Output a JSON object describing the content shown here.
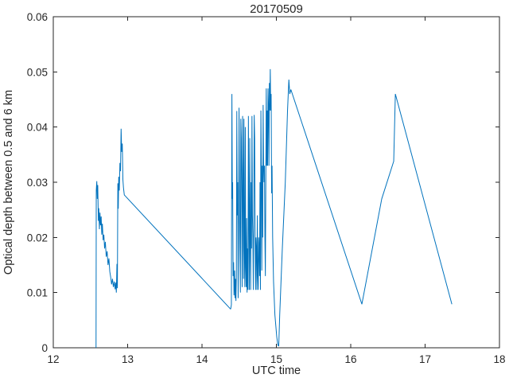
{
  "chart_data": {
    "type": "line",
    "title": "20170509",
    "xlabel": "UTC time",
    "ylabel": "Optical depth between 0.5 and 6 km",
    "xlim": [
      12,
      18
    ],
    "ylim": [
      0,
      0.06
    ],
    "xticks": [
      12,
      13,
      14,
      15,
      16,
      17,
      18
    ],
    "xtick_labels": [
      "12",
      "13",
      "14",
      "15",
      "16",
      "17",
      "18"
    ],
    "yticks": [
      0,
      0.01,
      0.02,
      0.03,
      0.04,
      0.05,
      0.06
    ],
    "ytick_labels": [
      "0",
      "0.01",
      "0.02",
      "0.03",
      "0.04",
      "0.05",
      "0.06"
    ],
    "grid": false,
    "legend_position": "none",
    "line_color": "#0072bd",
    "axis_color": "#262626",
    "background_color": "#ffffff",
    "series": [
      {
        "name": "optical-depth-trace",
        "x": [
          12.575,
          12.578,
          12.585,
          12.592,
          12.598,
          12.606,
          12.612,
          12.62,
          12.628,
          12.636,
          12.644,
          12.652,
          12.66,
          12.67,
          12.68,
          12.69,
          12.7,
          12.712,
          12.724,
          12.736,
          12.748,
          12.76,
          12.772,
          12.784,
          12.796,
          12.808,
          12.82,
          12.832,
          12.84,
          12.848,
          12.856,
          12.862,
          12.868,
          12.874,
          12.88,
          12.888,
          12.896,
          12.904,
          12.912,
          12.92,
          12.928,
          12.936,
          12.944,
          12.955,
          14.385,
          14.395,
          14.402,
          14.408,
          14.412,
          14.418,
          14.425,
          14.43,
          14.438,
          14.444,
          14.45,
          14.456,
          14.462,
          14.468,
          14.474,
          14.48,
          14.486,
          14.492,
          14.498,
          14.504,
          14.51,
          14.516,
          14.522,
          14.528,
          14.534,
          14.54,
          14.546,
          14.552,
          14.558,
          14.564,
          14.57,
          14.576,
          14.582,
          14.588,
          14.594,
          14.6,
          14.606,
          14.612,
          14.618,
          14.624,
          14.63,
          14.636,
          14.642,
          14.648,
          14.654,
          14.66,
          14.666,
          14.672,
          14.678,
          14.684,
          14.69,
          14.696,
          14.702,
          14.708,
          14.714,
          14.72,
          14.726,
          14.732,
          14.738,
          14.744,
          14.75,
          14.756,
          14.762,
          14.768,
          14.774,
          14.78,
          14.786,
          14.792,
          14.798,
          14.804,
          14.81,
          14.816,
          14.822,
          14.828,
          14.834,
          14.84,
          14.846,
          14.852,
          14.858,
          14.864,
          14.87,
          14.876,
          14.882,
          14.888,
          14.894,
          14.9,
          14.906,
          14.912,
          14.918,
          14.924,
          14.93,
          14.936,
          14.942,
          14.95,
          14.962,
          14.98,
          15.005,
          15.02,
          15.032,
          15.045,
          15.08,
          15.12,
          15.15,
          15.168,
          15.18,
          15.195,
          16.15,
          16.417,
          16.578,
          16.6,
          17.36
        ],
        "y": [
          0.0,
          0.0285,
          0.0302,
          0.027,
          0.0295,
          0.023,
          0.0253,
          0.0215,
          0.0245,
          0.0222,
          0.0238,
          0.0205,
          0.0225,
          0.0195,
          0.0205,
          0.018,
          0.0192,
          0.0165,
          0.0175,
          0.015,
          0.0162,
          0.0138,
          0.0128,
          0.0115,
          0.0125,
          0.011,
          0.012,
          0.0106,
          0.0118,
          0.01,
          0.0152,
          0.0108,
          0.0298,
          0.0252,
          0.031,
          0.0285,
          0.0335,
          0.032,
          0.0397,
          0.0355,
          0.037,
          0.0305,
          0.029,
          0.0277,
          0.007,
          0.0078,
          0.046,
          0.027,
          0.03,
          0.013,
          0.0155,
          0.0095,
          0.014,
          0.009,
          0.0125,
          0.0085,
          0.013,
          0.0429,
          0.024,
          0.03,
          0.009,
          0.02,
          0.0435,
          0.03,
          0.018,
          0.01,
          0.0415,
          0.038,
          0.026,
          0.011,
          0.042,
          0.03,
          0.0125,
          0.0415,
          0.018,
          0.011,
          0.04,
          0.0145,
          0.011,
          0.0235,
          0.01,
          0.018,
          0.0105,
          0.042,
          0.023,
          0.0105,
          0.038,
          0.02,
          0.0105,
          0.03,
          0.018,
          0.042,
          0.024,
          0.02,
          0.0105,
          0.024,
          0.0422,
          0.038,
          0.02,
          0.0105,
          0.02,
          0.018,
          0.0105,
          0.024,
          0.013,
          0.0105,
          0.02,
          0.018,
          0.013,
          0.03,
          0.0105,
          0.043,
          0.033,
          0.014,
          0.033,
          0.02,
          0.044,
          0.033,
          0.03,
          0.033,
          0.02,
          0.013,
          0.03,
          0.047,
          0.033,
          0.043,
          0.033,
          0.047,
          0.044,
          0.033,
          0.048,
          0.043,
          0.0505,
          0.043,
          0.046,
          0.028,
          0.033,
          0.02,
          0.012,
          0.006,
          0.002,
          0.0005,
          0.0003,
          0.006,
          0.018,
          0.03,
          0.043,
          0.0486,
          0.046,
          0.0468,
          0.0079,
          0.027,
          0.0338,
          0.046,
          0.0079
        ]
      }
    ]
  }
}
